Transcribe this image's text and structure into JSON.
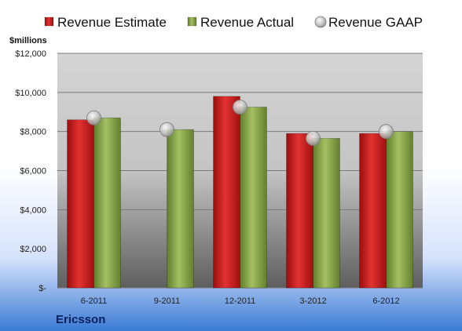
{
  "chart_data": {
    "type": "bar",
    "company": "Ericsson",
    "ylabel": "$millions",
    "categories": [
      "6-2011",
      "9-2011",
      "12-2011",
      "3-2012",
      "6-2012"
    ],
    "series": [
      {
        "name": "Revenue Estimate",
        "kind": "bar",
        "color": "#cc1a1a",
        "values": [
          8600,
          null,
          9800,
          7900,
          7900
        ]
      },
      {
        "name": "Revenue Actual",
        "kind": "bar",
        "color": "#8aa84a",
        "values": [
          8700,
          8100,
          9250,
          7650,
          8000
        ]
      },
      {
        "name": "Revenue GAAP",
        "kind": "marker",
        "color": "#c9c9c9",
        "values": [
          8700,
          8100,
          9250,
          7650,
          8000
        ]
      }
    ],
    "ylim": [
      0,
      12000
    ],
    "yticks": [
      0,
      2000,
      4000,
      6000,
      8000,
      10000,
      12000
    ],
    "ytick_labels": [
      "$-",
      "$2,000",
      "$4,000",
      "$6,000",
      "$8,000",
      "$10,000",
      "$12,000"
    ],
    "grid": true,
    "legend_position": "top"
  }
}
